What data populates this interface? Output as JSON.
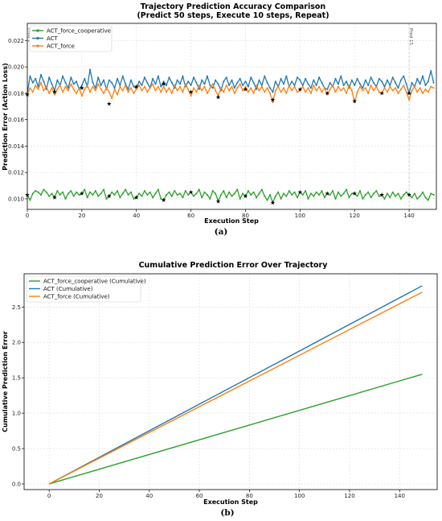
{
  "panel_captions": [
    "(a)",
    "(b)"
  ],
  "chart_data": [
    {
      "type": "line",
      "title": "Trajectory Prediction Accuracy Comparison\n(Predict 50 steps, Execute 10 steps, Repeat)",
      "xlabel": "Execution Step",
      "ylabel": "Prediction Error (Action Loss)",
      "xlim": [
        0,
        150
      ],
      "ylim": [
        0.0092,
        0.0233
      ],
      "xticks": [
        0,
        20,
        40,
        60,
        80,
        100,
        120,
        140
      ],
      "yticks": [
        0.01,
        0.012,
        0.014,
        0.016,
        0.018,
        0.02,
        0.022
      ],
      "grid": true,
      "legend_position": "top-left",
      "vline_labels": [
        "Pred 1",
        "Pred 15"
      ],
      "vline_x": [
        0,
        140
      ],
      "marker_x": [
        0,
        10,
        20,
        30,
        40,
        50,
        60,
        70,
        80,
        90,
        100,
        110,
        120,
        130,
        140
      ],
      "marker_note": "star markers at each prediction step",
      "series": [
        {
          "name": "ACT_force_cooperative",
          "color": "#2ca02c",
          "marker": "s",
          "values": [
            0.0103,
            0.0099,
            0.0104,
            0.0106,
            0.0105,
            0.0103,
            0.0107,
            0.0105,
            0.0102,
            0.0104,
            0.0101,
            0.0106,
            0.0103,
            0.0105,
            0.01,
            0.0104,
            0.0106,
            0.0102,
            0.0105,
            0.0103,
            0.0104,
            0.0107,
            0.0101,
            0.0105,
            0.0103,
            0.0106,
            0.0102,
            0.0104,
            0.0107,
            0.01,
            0.0102,
            0.0105,
            0.0103,
            0.0106,
            0.0101,
            0.0104,
            0.0107,
            0.0103,
            0.0105,
            0.01,
            0.0101,
            0.0104,
            0.0102,
            0.0106,
            0.0103,
            0.0105,
            0.0101,
            0.0104,
            0.0107,
            0.01,
            0.0099,
            0.0103,
            0.0105,
            0.0102,
            0.0106,
            0.0103,
            0.0104,
            0.0101,
            0.0106,
            0.0103,
            0.0105,
            0.0102,
            0.0104,
            0.0107,
            0.0101,
            0.0105,
            0.0103,
            0.01,
            0.0106,
            0.0104,
            0.0098,
            0.0103,
            0.0106,
            0.0101,
            0.0105,
            0.0102,
            0.0104,
            0.0107,
            0.01,
            0.0104,
            0.0102,
            0.0106,
            0.0103,
            0.0105,
            0.0101,
            0.0104,
            0.0107,
            0.0102,
            0.0099,
            0.0103,
            0.0097,
            0.0102,
            0.0105,
            0.01,
            0.0104,
            0.0102,
            0.0106,
            0.0103,
            0.0105,
            0.0101,
            0.0105,
            0.0103,
            0.0106,
            0.01,
            0.0104,
            0.0102,
            0.0105,
            0.0103,
            0.0106,
            0.0101,
            0.0104,
            0.0103,
            0.0106,
            0.01,
            0.0105,
            0.0102,
            0.0104,
            0.0107,
            0.0101,
            0.0104,
            0.0104,
            0.0102,
            0.0106,
            0.01,
            0.0103,
            0.0105,
            0.0101,
            0.0104,
            0.0106,
            0.0102,
            0.0103,
            0.01,
            0.0104,
            0.0101,
            0.0105,
            0.0102,
            0.0104,
            0.01,
            0.0103,
            0.0105,
            0.0103,
            0.0101,
            0.0104,
            0.01,
            0.0102,
            0.0105,
            0.0101,
            0.0099,
            0.0104,
            0.0103
          ]
        },
        {
          "name": "ACT",
          "color": "#1f77b4",
          "marker": "o",
          "values": [
            0.018,
            0.0193,
            0.0188,
            0.0191,
            0.0185,
            0.0194,
            0.0189,
            0.0183,
            0.0192,
            0.0187,
            0.0182,
            0.019,
            0.0186,
            0.0193,
            0.0188,
            0.0184,
            0.0192,
            0.0187,
            0.0189,
            0.0183,
            0.0186,
            0.0191,
            0.0185,
            0.0198,
            0.0188,
            0.0184,
            0.0192,
            0.0186,
            0.019,
            0.0183,
            0.019,
            0.0188,
            0.0184,
            0.0191,
            0.0186,
            0.0193,
            0.0187,
            0.0183,
            0.019,
            0.0185,
            0.0184,
            0.0189,
            0.0186,
            0.0192,
            0.0188,
            0.0184,
            0.0191,
            0.0187,
            0.0193,
            0.0185,
            0.0189,
            0.0186,
            0.0192,
            0.0188,
            0.0184,
            0.019,
            0.0187,
            0.0193,
            0.0185,
            0.0189,
            0.0186,
            0.0192,
            0.0188,
            0.0183,
            0.019,
            0.0187,
            0.0193,
            0.0186,
            0.0184,
            0.019,
            0.0187,
            0.0182,
            0.0189,
            0.0192,
            0.0186,
            0.019,
            0.0184,
            0.0188,
            0.0191,
            0.0186,
            0.0189,
            0.0185,
            0.0192,
            0.0188,
            0.0183,
            0.019,
            0.0186,
            0.0193,
            0.0188,
            0.0184,
            0.0181,
            0.0189,
            0.0185,
            0.0191,
            0.0187,
            0.0193,
            0.0185,
            0.0189,
            0.0186,
            0.0192,
            0.019,
            0.0186,
            0.0191,
            0.0187,
            0.0184,
            0.019,
            0.0186,
            0.0192,
            0.0188,
            0.0184,
            0.0183,
            0.0188,
            0.0185,
            0.0191,
            0.0187,
            0.0193,
            0.0186,
            0.0189,
            0.0184,
            0.019,
            0.0186,
            0.0191,
            0.0187,
            0.0184,
            0.019,
            0.0186,
            0.0192,
            0.0188,
            0.0185,
            0.0191,
            0.0189,
            0.0185,
            0.019,
            0.0186,
            0.0192,
            0.0188,
            0.0184,
            0.019,
            0.0193,
            0.0187,
            0.018,
            0.0188,
            0.0185,
            0.0191,
            0.0187,
            0.0193,
            0.0186,
            0.0189,
            0.0197,
            0.0188
          ]
        },
        {
          "name": "ACT_force",
          "color": "#ff7f0e",
          "marker": "o",
          "values": [
            0.0179,
            0.0184,
            0.0181,
            0.0186,
            0.0183,
            0.0188,
            0.0182,
            0.0185,
            0.018,
            0.0184,
            0.0179,
            0.0183,
            0.0186,
            0.0181,
            0.0185,
            0.0182,
            0.0187,
            0.0183,
            0.018,
            0.0184,
            0.0178,
            0.0183,
            0.0186,
            0.0181,
            0.0185,
            0.0182,
            0.0187,
            0.0183,
            0.018,
            0.0184,
            0.0181,
            0.0176,
            0.0183,
            0.0179,
            0.0185,
            0.0182,
            0.0186,
            0.0181,
            0.0184,
            0.018,
            0.0183,
            0.0186,
            0.0182,
            0.0185,
            0.0181,
            0.0184,
            0.0187,
            0.0182,
            0.0185,
            0.0181,
            0.0185,
            0.0181,
            0.0184,
            0.018,
            0.0186,
            0.0182,
            0.0185,
            0.0181,
            0.0187,
            0.0183,
            0.0178,
            0.0184,
            0.0181,
            0.0186,
            0.0182,
            0.0185,
            0.018,
            0.0184,
            0.0187,
            0.0182,
            0.0178,
            0.0184,
            0.0181,
            0.0186,
            0.0182,
            0.0185,
            0.018,
            0.0184,
            0.0187,
            0.0182,
            0.0185,
            0.0181,
            0.0184,
            0.018,
            0.0186,
            0.0182,
            0.0185,
            0.0181,
            0.0184,
            0.018,
            0.0173,
            0.0182,
            0.0185,
            0.0181,
            0.0184,
            0.018,
            0.0186,
            0.0182,
            0.0185,
            0.0181,
            0.0182,
            0.0185,
            0.0181,
            0.0184,
            0.018,
            0.0186,
            0.0182,
            0.0185,
            0.0181,
            0.0184,
            0.0179,
            0.0183,
            0.0186,
            0.0181,
            0.0185,
            0.0182,
            0.0184,
            0.018,
            0.0186,
            0.0182,
            0.0173,
            0.0181,
            0.0185,
            0.0182,
            0.0184,
            0.018,
            0.0186,
            0.0182,
            0.0185,
            0.0181,
            0.018,
            0.0184,
            0.0181,
            0.0185,
            0.0182,
            0.0184,
            0.018,
            0.0183,
            0.0186,
            0.0181,
            0.0175,
            0.0182,
            0.0185,
            0.0181,
            0.0184,
            0.018,
            0.0183,
            0.0181,
            0.0185,
            0.0184
          ]
        }
      ],
      "star_values": [
        0.0179,
        0.0181,
        0.0184,
        0.0172,
        0.0185,
        0.0187,
        0.0181,
        0.0177,
        0.0183,
        0.0175,
        0.0183,
        0.018,
        0.0174,
        0.018,
        0.018
      ]
    },
    {
      "type": "line",
      "title": "Cumulative Prediction Error Over Trajectory",
      "xlabel": "Execution Step",
      "ylabel": "Cumulative Prediction Error",
      "xlim": [
        -10,
        155
      ],
      "ylim": [
        -0.08,
        2.97
      ],
      "xticks": [
        0,
        20,
        40,
        60,
        80,
        100,
        120,
        140
      ],
      "yticks": [
        0.0,
        0.5,
        1.0,
        1.5,
        2.0,
        2.5
      ],
      "grid": true,
      "legend_position": "top-left",
      "series": [
        {
          "name": "ACT_force_cooperative (Cumulative)",
          "color": "#2ca02c",
          "x": [
            0,
            149
          ],
          "values": [
            0.0,
            1.55
          ]
        },
        {
          "name": "ACT (Cumulative)",
          "color": "#1f77b4",
          "x": [
            0,
            149
          ],
          "values": [
            0.0,
            2.8
          ]
        },
        {
          "name": "ACT_force (Cumulative)",
          "color": "#ff7f0e",
          "x": [
            0,
            149
          ],
          "values": [
            0.0,
            2.71
          ]
        }
      ]
    }
  ]
}
